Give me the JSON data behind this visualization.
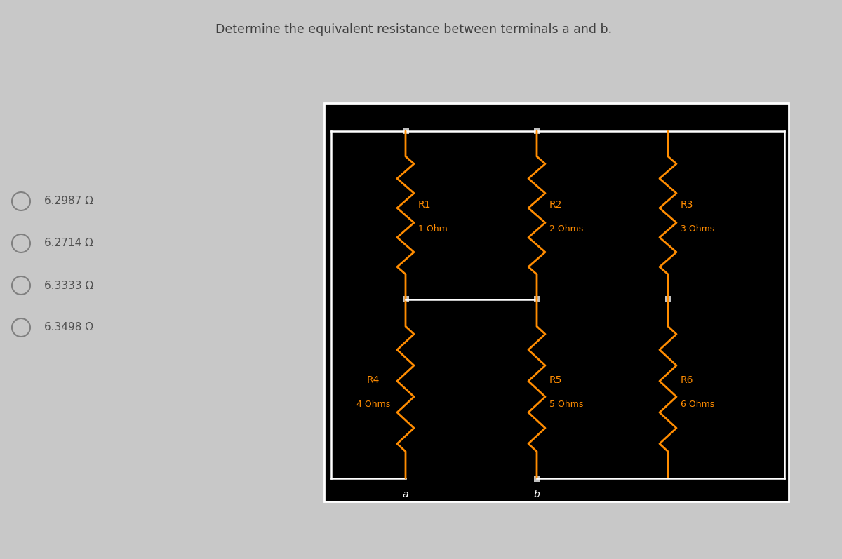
{
  "bg_color": "#000000",
  "outer_bg": "#c8c8c8",
  "wire_color": "#ffffff",
  "node_color": "#c8c8c8",
  "resistor_color": "#ff8c00",
  "text_color": "#ff8c00",
  "title": "Determine the equivalent resistance between terminals a and b.",
  "title_color": "#404040",
  "options": [
    "6.2987 Ω",
    "6.2714 Ω",
    "6.3333 Ω",
    "6.3498 Ω"
  ],
  "resistors": [
    {
      "name": "R1",
      "value": "1 Ohm"
    },
    {
      "name": "R2",
      "value": "2 Ohms"
    },
    {
      "name": "R3",
      "value": "3 Ohms"
    },
    {
      "name": "R4",
      "value": "4 Ohms"
    },
    {
      "name": "R5",
      "value": "5 Ohms"
    },
    {
      "name": "R6",
      "value": "6 Ohms"
    }
  ]
}
